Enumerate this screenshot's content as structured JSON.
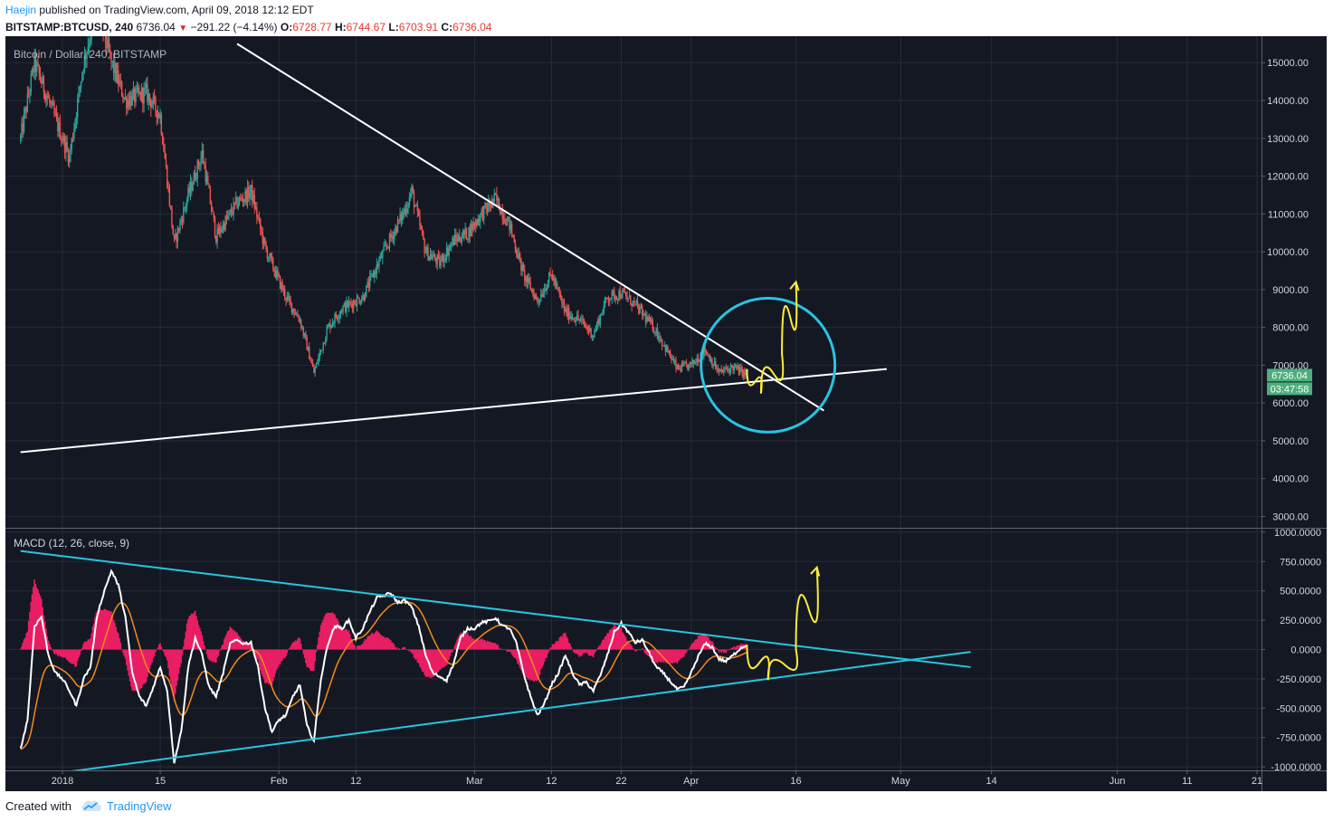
{
  "header": {
    "author": "Haejin",
    "published_text": "published on TradingView.com, April 09, 2018 12:12 EDT",
    "symbol": "BITSTAMP:BTCUSD, 240",
    "last": "6736.04",
    "change": "−291.22 (−4.14%)",
    "open_label": "O:",
    "open": "6728.77",
    "high_label": "H:",
    "high": "6744.67",
    "low_label": "L:",
    "low": "6703.91",
    "close_label": "C:",
    "close": "6736.04"
  },
  "colors": {
    "background": "#141823",
    "grid": "#262b38",
    "up": "#26a69a",
    "down": "#ef5350",
    "trendline": "#ffffff",
    "cyan": "#29c4e0",
    "yellow": "#ffeb3b",
    "macd_line": "#ffffff",
    "signal_line": "#f28a1e",
    "histogram": "#e91e63",
    "price_tag": "#4caf7d"
  },
  "chart_data": [
    {
      "type": "candlestick",
      "title": "Bitcoin / Dollar, 240, BITSTAMP",
      "yticks": [
        3000,
        4000,
        5000,
        6000,
        7000,
        8000,
        9000,
        10000,
        11000,
        12000,
        13000,
        14000,
        15000
      ],
      "ytick_labels": [
        "3000.00",
        "4000.00",
        "5000.00",
        "6000.00",
        "7000.00",
        "8000.00",
        "9000.00",
        "10000.00",
        "11000.00",
        "12000.00",
        "13000.00",
        "14000.00",
        "15000.00"
      ],
      "ylim": [
        2700,
        15700
      ],
      "last_price_label": "6736.04",
      "countdown_label": "03:47:58",
      "price_path": [
        {
          "date": "2017-12-26",
          "value": 13000
        },
        {
          "date": "2017-12-28",
          "value": 15000
        },
        {
          "date": "2017-12-31",
          "value": 13500
        },
        {
          "date": "2018-01-02",
          "value": 12500
        },
        {
          "date": "2018-01-04",
          "value": 15000
        },
        {
          "date": "2018-01-06",
          "value": 16500
        },
        {
          "date": "2018-01-08",
          "value": 15000
        },
        {
          "date": "2018-01-10",
          "value": 14000
        },
        {
          "date": "2018-01-13",
          "value": 14200
        },
        {
          "date": "2018-01-15",
          "value": 13600
        },
        {
          "date": "2018-01-17",
          "value": 10200
        },
        {
          "date": "2018-01-19",
          "value": 11500
        },
        {
          "date": "2018-01-21",
          "value": 12600
        },
        {
          "date": "2018-01-23",
          "value": 10400
        },
        {
          "date": "2018-01-26",
          "value": 11300
        },
        {
          "date": "2018-01-28",
          "value": 11600
        },
        {
          "date": "2018-01-30",
          "value": 10100
        },
        {
          "date": "2018-02-02",
          "value": 8800
        },
        {
          "date": "2018-02-04",
          "value": 8200
        },
        {
          "date": "2018-02-06",
          "value": 6800
        },
        {
          "date": "2018-02-08",
          "value": 8000
        },
        {
          "date": "2018-02-10",
          "value": 8500
        },
        {
          "date": "2018-02-13",
          "value": 8800
        },
        {
          "date": "2018-02-16",
          "value": 10000
        },
        {
          "date": "2018-02-19",
          "value": 11100
        },
        {
          "date": "2018-02-20",
          "value": 11600
        },
        {
          "date": "2018-02-22",
          "value": 10000
        },
        {
          "date": "2018-02-24",
          "value": 9700
        },
        {
          "date": "2018-02-26",
          "value": 10300
        },
        {
          "date": "2018-02-28",
          "value": 10500
        },
        {
          "date": "2018-03-02",
          "value": 11000
        },
        {
          "date": "2018-03-04",
          "value": 11400
        },
        {
          "date": "2018-03-06",
          "value": 10700
        },
        {
          "date": "2018-03-08",
          "value": 9400
        },
        {
          "date": "2018-03-10",
          "value": 8700
        },
        {
          "date": "2018-03-12",
          "value": 9400
        },
        {
          "date": "2018-03-14",
          "value": 8400
        },
        {
          "date": "2018-03-16",
          "value": 8200
        },
        {
          "date": "2018-03-18",
          "value": 7800
        },
        {
          "date": "2018-03-20",
          "value": 8800
        },
        {
          "date": "2018-03-22",
          "value": 8900
        },
        {
          "date": "2018-03-24",
          "value": 8600
        },
        {
          "date": "2018-03-27",
          "value": 7900
        },
        {
          "date": "2018-03-30",
          "value": 6900
        },
        {
          "date": "2018-04-01",
          "value": 7000
        },
        {
          "date": "2018-04-03",
          "value": 7400
        },
        {
          "date": "2018-04-05",
          "value": 6800
        },
        {
          "date": "2018-04-07",
          "value": 6950
        },
        {
          "date": "2018-04-09",
          "value": 6740
        }
      ],
      "trendlines": [
        {
          "name": "descending-resistance",
          "from": {
            "date": "2018-01-26",
            "value": 15500
          },
          "to": {
            "date": "2018-04-20",
            "value": 5800
          }
        },
        {
          "name": "ascending-support",
          "from": {
            "date": "2017-12-26",
            "value": 4700
          },
          "to": {
            "date": "2018-04-29",
            "value": 6900
          }
        }
      ],
      "annotations": [
        {
          "type": "circle",
          "center": {
            "date": "2018-04-12",
            "value": 7000
          }
        },
        {
          "type": "arrow-path",
          "points": [
            {
              "date": "2018-04-09",
              "value": 6900
            },
            {
              "date": "2018-04-11",
              "value": 6250
            },
            {
              "date": "2018-04-14",
              "value": 7300
            },
            {
              "date": "2018-04-16",
              "value": 9200
            }
          ]
        }
      ]
    },
    {
      "type": "line",
      "title": "MACD (12, 26, close, 9)",
      "yticks": [
        -1000,
        -750,
        -500,
        -250,
        0,
        250,
        500,
        750,
        1000
      ],
      "ytick_labels": [
        "-1000.0000",
        "-750.0000",
        "-500.0000",
        "-250.0000",
        "0.0000",
        "250.0000",
        "500.0000",
        "750.0000",
        "1000.0000"
      ],
      "ylim": [
        -1030,
        1030
      ],
      "macd": [
        {
          "date": "2017-12-26",
          "value": -850
        },
        {
          "date": "2017-12-27",
          "value": -600
        },
        {
          "date": "2017-12-28",
          "value": 200
        },
        {
          "date": "2017-12-29",
          "value": 280
        },
        {
          "date": "2017-12-30",
          "value": -50
        },
        {
          "date": "2017-12-31",
          "value": -200
        },
        {
          "date": "2018-01-01",
          "value": -250
        },
        {
          "date": "2018-01-02",
          "value": -350
        },
        {
          "date": "2018-01-03",
          "value": -480
        },
        {
          "date": "2018-01-04",
          "value": -250
        },
        {
          "date": "2018-01-05",
          "value": -150
        },
        {
          "date": "2018-01-06",
          "value": 300
        },
        {
          "date": "2018-01-07",
          "value": 500
        },
        {
          "date": "2018-01-08",
          "value": 670
        },
        {
          "date": "2018-01-09",
          "value": 550
        },
        {
          "date": "2018-01-10",
          "value": 280
        },
        {
          "date": "2018-01-11",
          "value": -200
        },
        {
          "date": "2018-01-12",
          "value": -400
        },
        {
          "date": "2018-01-13",
          "value": -480
        },
        {
          "date": "2018-01-14",
          "value": -320
        },
        {
          "date": "2018-01-15",
          "value": -150
        },
        {
          "date": "2018-01-16",
          "value": -350
        },
        {
          "date": "2018-01-17",
          "value": -960
        },
        {
          "date": "2018-01-18",
          "value": -700
        },
        {
          "date": "2018-01-19",
          "value": -150
        },
        {
          "date": "2018-01-20",
          "value": 100
        },
        {
          "date": "2018-01-21",
          "value": -50
        },
        {
          "date": "2018-01-22",
          "value": -320
        },
        {
          "date": "2018-01-23",
          "value": -400
        },
        {
          "date": "2018-01-24",
          "value": -200
        },
        {
          "date": "2018-01-25",
          "value": 50
        },
        {
          "date": "2018-01-26",
          "value": 80
        },
        {
          "date": "2018-01-27",
          "value": 50
        },
        {
          "date": "2018-01-28",
          "value": 60
        },
        {
          "date": "2018-01-29",
          "value": -150
        },
        {
          "date": "2018-01-30",
          "value": -500
        },
        {
          "date": "2018-01-31",
          "value": -700
        },
        {
          "date": "2018-02-01",
          "value": -600
        },
        {
          "date": "2018-02-02",
          "value": -560
        },
        {
          "date": "2018-02-03",
          "value": -400
        },
        {
          "date": "2018-02-04",
          "value": -300
        },
        {
          "date": "2018-02-05",
          "value": -650
        },
        {
          "date": "2018-02-06",
          "value": -780
        },
        {
          "date": "2018-02-07",
          "value": -250
        },
        {
          "date": "2018-02-08",
          "value": 50
        },
        {
          "date": "2018-02-09",
          "value": 200
        },
        {
          "date": "2018-02-10",
          "value": 180
        },
        {
          "date": "2018-02-11",
          "value": 250
        },
        {
          "date": "2018-02-12",
          "value": 100
        },
        {
          "date": "2018-02-13",
          "value": 180
        },
        {
          "date": "2018-02-14",
          "value": 320
        },
        {
          "date": "2018-02-15",
          "value": 440
        },
        {
          "date": "2018-02-16",
          "value": 460
        },
        {
          "date": "2018-02-17",
          "value": 480
        },
        {
          "date": "2018-02-18",
          "value": 400
        },
        {
          "date": "2018-02-19",
          "value": 420
        },
        {
          "date": "2018-02-20",
          "value": 360
        },
        {
          "date": "2018-02-21",
          "value": 200
        },
        {
          "date": "2018-02-22",
          "value": -50
        },
        {
          "date": "2018-02-23",
          "value": -200
        },
        {
          "date": "2018-02-24",
          "value": -230
        },
        {
          "date": "2018-02-25",
          "value": -260
        },
        {
          "date": "2018-02-26",
          "value": -120
        },
        {
          "date": "2018-02-27",
          "value": 100
        },
        {
          "date": "2018-02-28",
          "value": 180
        },
        {
          "date": "2018-03-01",
          "value": 180
        },
        {
          "date": "2018-03-02",
          "value": 230
        },
        {
          "date": "2018-03-03",
          "value": 240
        },
        {
          "date": "2018-03-04",
          "value": 270
        },
        {
          "date": "2018-03-05",
          "value": 200
        },
        {
          "date": "2018-03-06",
          "value": 180
        },
        {
          "date": "2018-03-07",
          "value": 50
        },
        {
          "date": "2018-03-08",
          "value": -200
        },
        {
          "date": "2018-03-09",
          "value": -400
        },
        {
          "date": "2018-03-10",
          "value": -560
        },
        {
          "date": "2018-03-11",
          "value": -460
        },
        {
          "date": "2018-03-12",
          "value": -300
        },
        {
          "date": "2018-03-13",
          "value": -200
        },
        {
          "date": "2018-03-14",
          "value": -50
        },
        {
          "date": "2018-03-15",
          "value": -200
        },
        {
          "date": "2018-03-16",
          "value": -300
        },
        {
          "date": "2018-03-17",
          "value": -280
        },
        {
          "date": "2018-03-18",
          "value": -350
        },
        {
          "date": "2018-03-19",
          "value": -220
        },
        {
          "date": "2018-03-20",
          "value": -50
        },
        {
          "date": "2018-03-21",
          "value": 150
        },
        {
          "date": "2018-03-22",
          "value": 220
        },
        {
          "date": "2018-03-23",
          "value": 150
        },
        {
          "date": "2018-03-24",
          "value": 60
        },
        {
          "date": "2018-03-25",
          "value": 80
        },
        {
          "date": "2018-03-26",
          "value": -30
        },
        {
          "date": "2018-03-27",
          "value": -150
        },
        {
          "date": "2018-03-28",
          "value": -200
        },
        {
          "date": "2018-03-29",
          "value": -270
        },
        {
          "date": "2018-03-30",
          "value": -340
        },
        {
          "date": "2018-03-31",
          "value": -320
        },
        {
          "date": "2018-04-01",
          "value": -200
        },
        {
          "date": "2018-04-02",
          "value": -60
        },
        {
          "date": "2018-04-03",
          "value": 50
        },
        {
          "date": "2018-04-04",
          "value": 20
        },
        {
          "date": "2018-04-05",
          "value": -80
        },
        {
          "date": "2018-04-06",
          "value": -100
        },
        {
          "date": "2018-04-07",
          "value": -50
        },
        {
          "date": "2018-04-08",
          "value": 10
        },
        {
          "date": "2018-04-09",
          "value": 40
        }
      ],
      "trendlines": [
        {
          "name": "macd-descending",
          "from": {
            "date": "2017-12-26",
            "value": 840
          },
          "to": {
            "date": "2018-05-11",
            "value": -150
          }
        },
        {
          "name": "macd-ascending",
          "from": {
            "date": "2018-01-02",
            "value": -1040
          },
          "to": {
            "date": "2018-05-11",
            "value": -20
          }
        }
      ],
      "annotations": [
        {
          "type": "arrow-path",
          "points": [
            {
              "date": "2018-04-09",
              "value": 40
            },
            {
              "date": "2018-04-12",
              "value": -260
            },
            {
              "date": "2018-04-16",
              "value": 0
            },
            {
              "date": "2018-04-19",
              "value": 700
            }
          ]
        }
      ]
    }
  ],
  "x_axis": {
    "ticks": [
      {
        "label": "2018",
        "date": "2018-01-01"
      },
      {
        "label": "15",
        "date": "2018-01-15"
      },
      {
        "label": "Feb",
        "date": "2018-02-01"
      },
      {
        "label": "12",
        "date": "2018-02-12"
      },
      {
        "label": "Mar",
        "date": "2018-03-01"
      },
      {
        "label": "12",
        "date": "2018-03-12"
      },
      {
        "label": "22",
        "date": "2018-03-22"
      },
      {
        "label": "Apr",
        "date": "2018-04-01"
      },
      {
        "label": "16",
        "date": "2018-04-16"
      },
      {
        "label": "May",
        "date": "2018-05-01"
      },
      {
        "label": "14",
        "date": "2018-05-14"
      },
      {
        "label": "Jun",
        "date": "2018-06-01"
      },
      {
        "label": "11",
        "date": "2018-06-11"
      },
      {
        "label": "21",
        "date": "2018-06-21"
      }
    ]
  },
  "footer": {
    "created_with": "Created with",
    "brand": "TradingView"
  }
}
